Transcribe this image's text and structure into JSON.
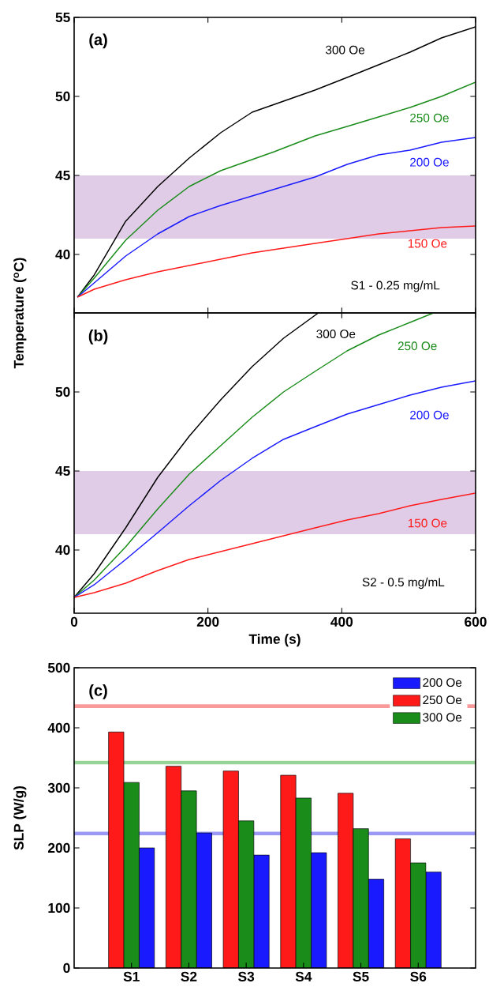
{
  "chart_data": [
    {
      "type": "line",
      "title": "(a)",
      "ylabel": "Temperature ($^{o}$C)",
      "xlim": [
        0,
        600
      ],
      "ylim": [
        36.3,
        55
      ],
      "xticks": [
        0,
        200,
        400,
        600
      ],
      "yticks": [
        40,
        45,
        50,
        55
      ],
      "tick_labels": "y",
      "annotations": [
        "S1 - 0.25 mg/mL"
      ],
      "bands": [
        {
          "axis": "y",
          "from": 41,
          "to": 45,
          "color": "#e0cce6"
        }
      ],
      "series": [
        {
          "name": "300 Oe",
          "color": "#000000",
          "x": [
            5,
            30,
            77,
            125,
            172,
            219,
            266,
            360,
            408,
            455,
            502,
            549,
            600
          ],
          "values": [
            37.3,
            38.7,
            42.1,
            44.3,
            46.1,
            47.7,
            49.0,
            50.4,
            51.2,
            52.0,
            52.8,
            53.7,
            54.4
          ]
        },
        {
          "name": "250 Oe",
          "color": "#1a8c1a",
          "x": [
            5,
            30,
            77,
            125,
            172,
            219,
            299,
            360,
            408,
            455,
            502,
            549,
            600
          ],
          "values": [
            37.3,
            38.5,
            40.9,
            42.8,
            44.3,
            45.3,
            46.5,
            47.5,
            48.1,
            48.7,
            49.3,
            50.0,
            50.9
          ]
        },
        {
          "name": "200 Oe",
          "color": "#1a1aff",
          "x": [
            5,
            30,
            77,
            125,
            172,
            219,
            266,
            313,
            360,
            408,
            455,
            502,
            549,
            600
          ],
          "values": [
            37.3,
            38.2,
            39.9,
            41.3,
            42.4,
            43.1,
            43.7,
            44.3,
            44.9,
            45.7,
            46.3,
            46.6,
            47.1,
            47.4
          ]
        },
        {
          "name": "150 Oe",
          "color": "#ff1a1a",
          "x": [
            5,
            30,
            77,
            125,
            172,
            219,
            266,
            313,
            360,
            408,
            455,
            502,
            549,
            600
          ],
          "values": [
            37.3,
            37.8,
            38.4,
            38.9,
            39.3,
            39.7,
            40.1,
            40.4,
            40.7,
            41.0,
            41.3,
            41.5,
            41.7,
            41.8
          ]
        }
      ]
    },
    {
      "type": "line",
      "title": "(b)",
      "xlabel": "Time (s)",
      "xlim": [
        0,
        600
      ],
      "ylim": [
        36,
        55
      ],
      "xticks": [
        0,
        200,
        400,
        600
      ],
      "yticks": [
        40,
        45,
        50
      ],
      "annotations": [
        "S2 - 0.5 mg/mL"
      ],
      "bands": [
        {
          "axis": "y",
          "from": 41,
          "to": 45,
          "color": "#e0cce6"
        }
      ],
      "series": [
        {
          "name": "300 Oe",
          "color": "#000000",
          "x": [
            0,
            30,
            77,
            125,
            172,
            219,
            266,
            313,
            365
          ],
          "values": [
            37.0,
            38.5,
            41.4,
            44.6,
            47.2,
            49.5,
            51.6,
            53.4,
            55.0
          ]
        },
        {
          "name": "250 Oe",
          "color": "#1a8c1a",
          "x": [
            0,
            30,
            77,
            125,
            172,
            219,
            266,
            313,
            360,
            408,
            455,
            502,
            537
          ],
          "values": [
            37.0,
            38.1,
            40.2,
            42.6,
            44.8,
            46.6,
            48.4,
            50.0,
            51.3,
            52.6,
            53.6,
            54.4,
            55.0
          ]
        },
        {
          "name": "200 Oe",
          "color": "#1a1aff",
          "x": [
            0,
            30,
            77,
            125,
            172,
            219,
            266,
            313,
            360,
            408,
            455,
            502,
            549,
            600
          ],
          "values": [
            37.0,
            37.8,
            39.4,
            41.1,
            42.8,
            44.4,
            45.8,
            47.0,
            47.8,
            48.6,
            49.2,
            49.8,
            50.3,
            50.7
          ]
        },
        {
          "name": "150 Oe",
          "color": "#ff1a1a",
          "x": [
            0,
            30,
            77,
            125,
            172,
            219,
            266,
            313,
            360,
            408,
            455,
            502,
            549,
            600
          ],
          "values": [
            37.0,
            37.3,
            37.9,
            38.7,
            39.4,
            39.9,
            40.4,
            40.9,
            41.4,
            41.9,
            42.3,
            42.8,
            43.2,
            43.6
          ]
        }
      ]
    },
    {
      "type": "bar",
      "title": "(c)",
      "ylabel": "SLP (W/g)",
      "categories": [
        "S1",
        "S2",
        "S3",
        "S4",
        "S5",
        "S6"
      ],
      "ylim": [
        0,
        500
      ],
      "yticks": [
        0,
        100,
        200,
        300,
        400,
        500
      ],
      "legend": "top right",
      "ref_lines": [
        {
          "axis": "y",
          "value": 436,
          "color": "#f99a9a"
        },
        {
          "axis": "y",
          "value": 342,
          "color": "#98d498"
        },
        {
          "axis": "y",
          "value": 224,
          "color": "#9a9af5"
        }
      ],
      "series": [
        {
          "name": "200 Oe",
          "color": "#1a1aff",
          "values": [
            200,
            225,
            188,
            192,
            148,
            160
          ]
        },
        {
          "name": "250 Oe",
          "color": "#ff1a1a",
          "values": [
            393,
            336,
            328,
            321,
            291,
            215
          ]
        },
        {
          "name": "300 Oe",
          "color": "#1a8c1a",
          "values": [
            309,
            295,
            245,
            283,
            232,
            175
          ]
        }
      ]
    }
  ]
}
